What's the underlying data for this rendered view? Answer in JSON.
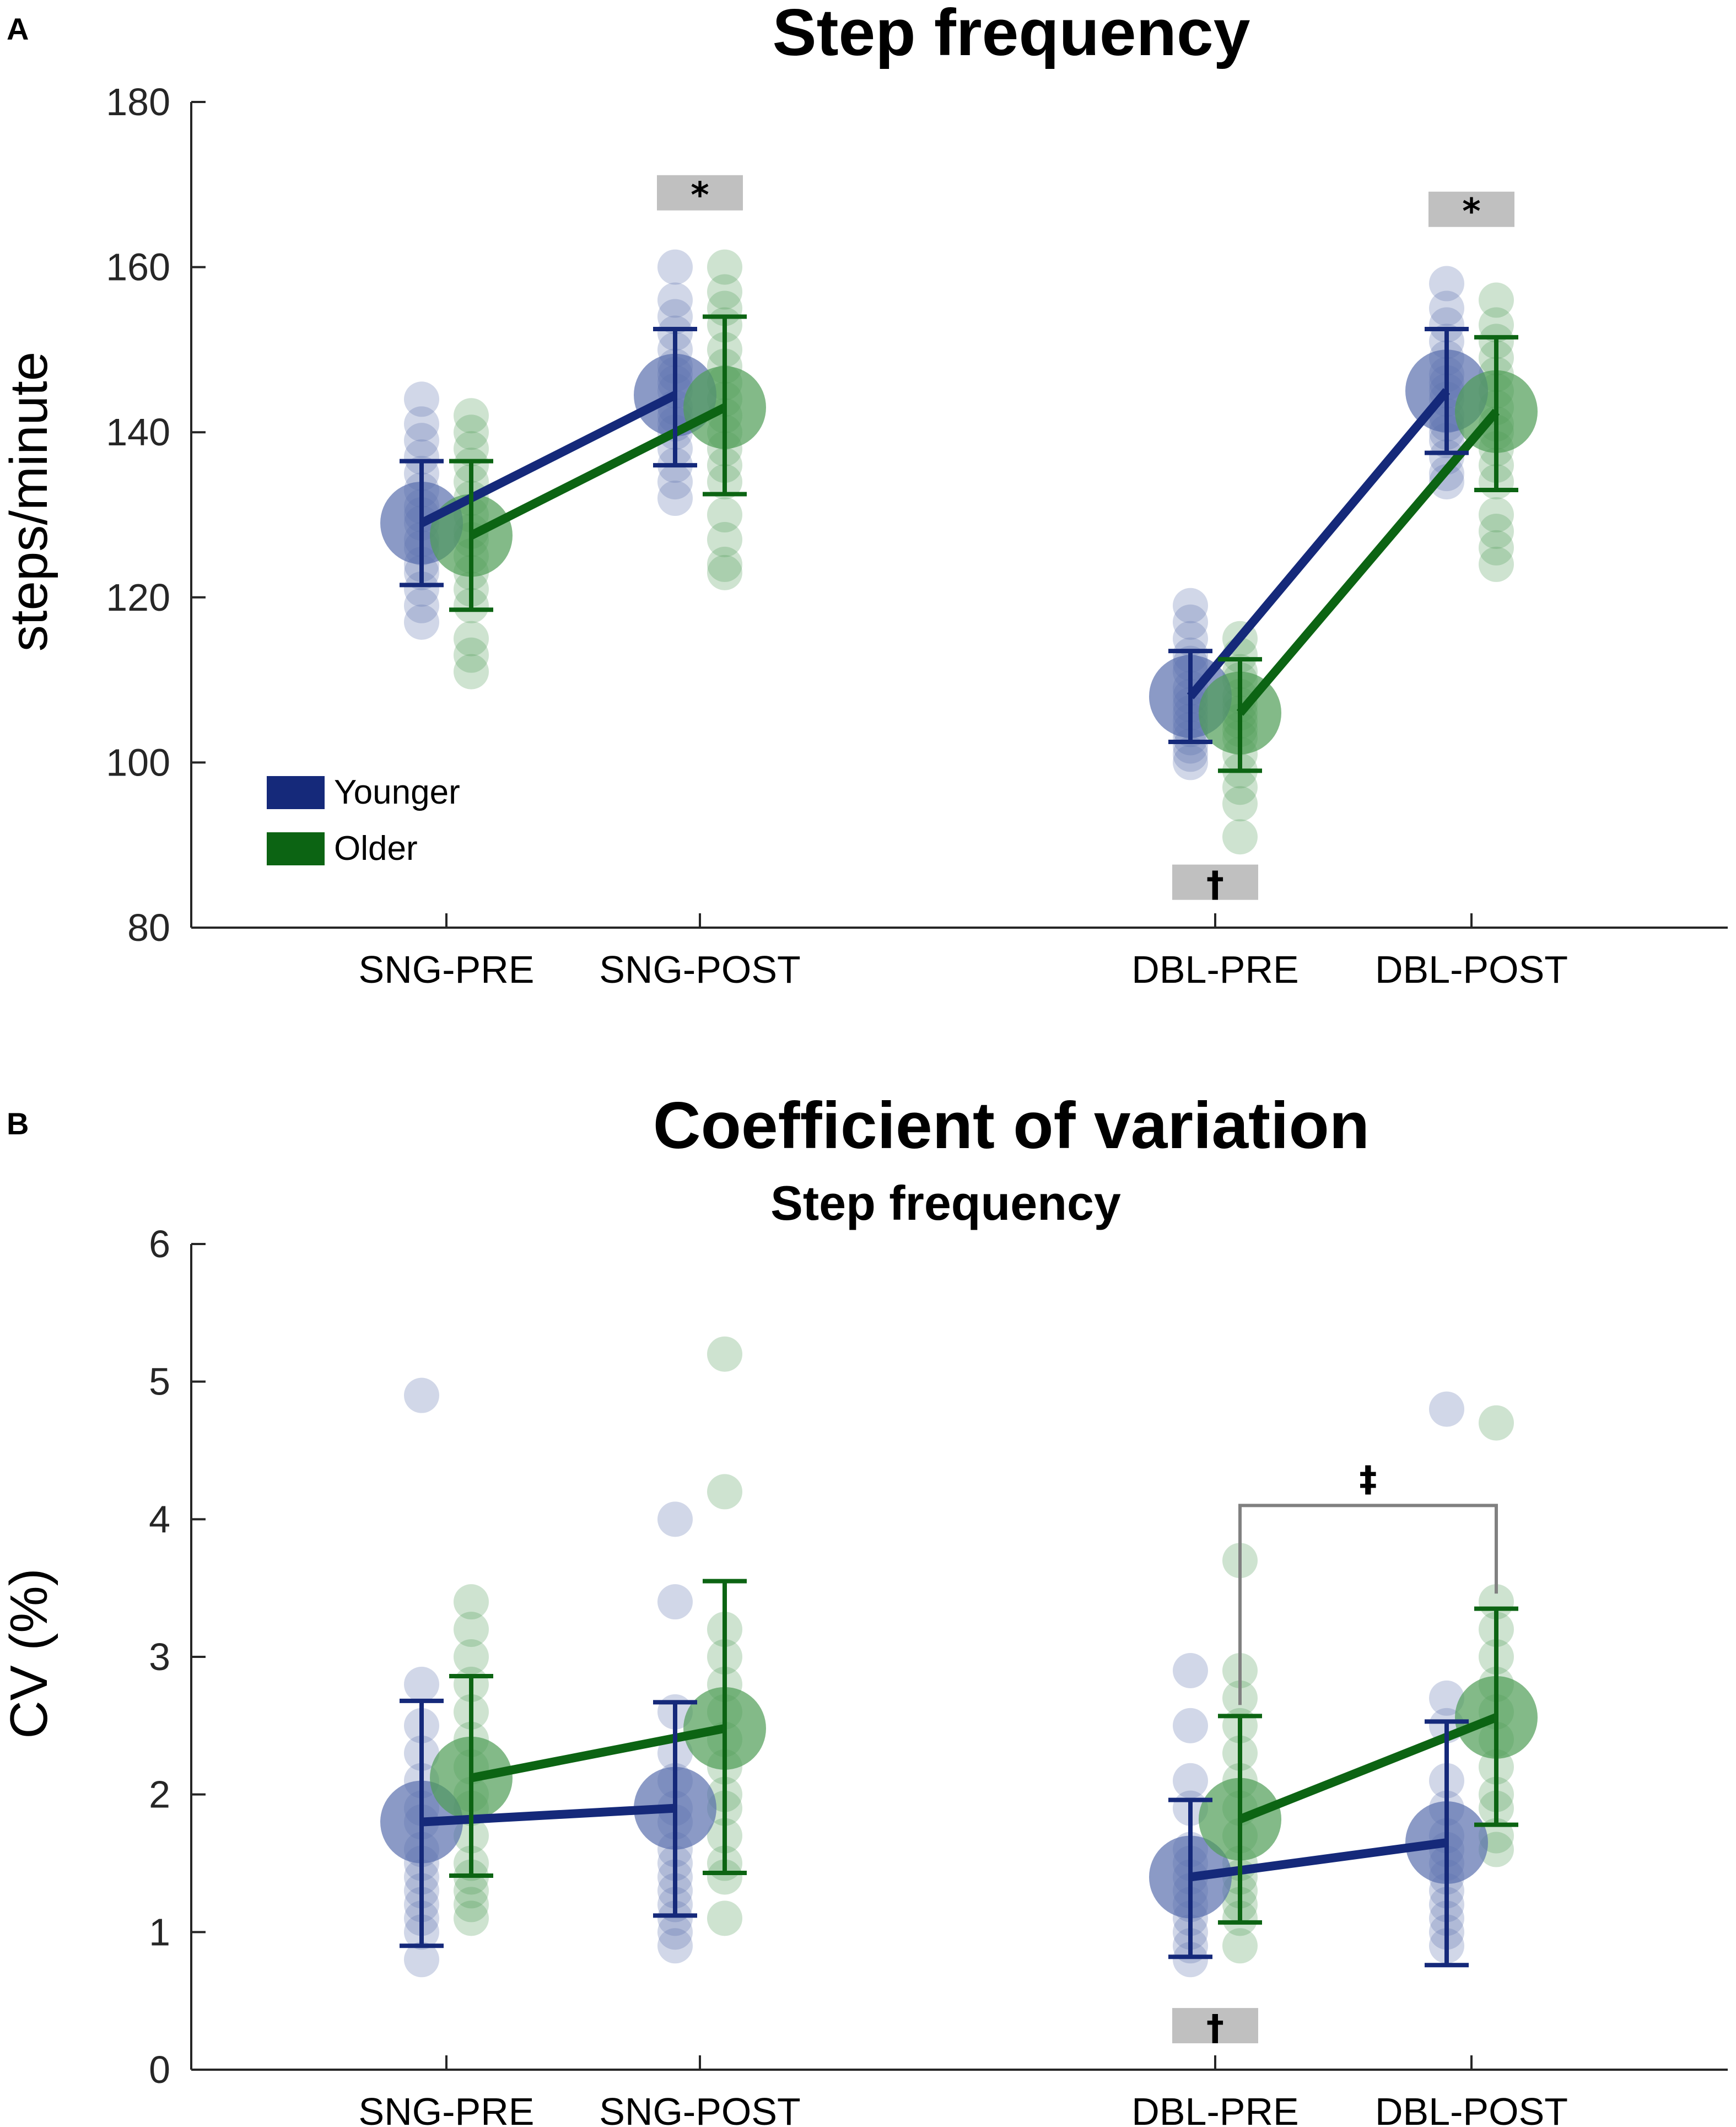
{
  "colors": {
    "younger": "#15297a",
    "older": "#0c6413",
    "younger_point": "#5a6fae",
    "older_point": "#4f9c55",
    "sig_box": "#c0c0c0",
    "bracket": "#808080"
  },
  "legend": {
    "younger": "Younger",
    "older": "Older"
  },
  "chart_data": [
    {
      "panel": "A",
      "type": "scatter",
      "title": "Step frequency",
      "subtitle": "",
      "ylabel": "steps/minute",
      "ylim": [
        80,
        180
      ],
      "yticks": [
        "80",
        "100",
        "120",
        "140",
        "160",
        "180"
      ],
      "categories": [
        "SNG-PRE",
        "SNG-POST",
        "DBL-PRE",
        "DBL-POST"
      ],
      "x_positions": [
        1,
        2,
        4,
        5
      ],
      "series": [
        {
          "name": "Younger",
          "means": [
            129,
            144.5,
            108,
            145
          ],
          "error_low": [
            121.5,
            136,
            102.5,
            137.5
          ],
          "error_high": [
            136.5,
            152.5,
            113.5,
            152.5
          ],
          "points": [
            [
              144,
              141,
              139,
              137,
              135,
              133,
              131,
              130,
              129,
              127,
              126,
              124,
              123,
              121,
              119,
              117
            ],
            [
              160,
              156,
              154,
              152,
              150,
              148,
              147,
              146,
              145,
              143,
              142,
              141,
              140,
              138,
              136,
              134,
              132
            ],
            [
              119,
              117,
              115,
              113,
              112,
              111,
              109,
              108,
              107,
              106,
              105,
              104,
              103,
              102,
              101,
              100
            ],
            [
              158,
              155,
              153,
              151,
              149,
              147,
              146,
              145,
              144,
              142,
              141,
              140,
              139,
              137,
              135,
              134
            ]
          ]
        },
        {
          "name": "Older",
          "means": [
            127.5,
            143,
            106,
            142.5
          ],
          "error_low": [
            118.5,
            132.5,
            99,
            133
          ],
          "error_high": [
            136.5,
            154,
            112.5,
            151.5
          ],
          "points": [
            [
              142,
              140,
              138,
              136,
              134,
              132,
              130,
              128,
              127,
              125,
              123,
              121,
              119,
              115,
              113,
              111
            ],
            [
              160,
              157,
              155,
              153,
              150,
              148,
              146,
              144,
              142,
              140,
              138,
              136,
              134,
              130,
              127,
              124,
              123
            ],
            [
              115,
              113,
              111,
              110,
              108,
              107,
              106,
              105,
              104,
              103,
              101,
              99,
              97,
              95,
              91
            ],
            [
              156,
              153,
              151,
              149,
              147,
              145,
              143,
              141,
              140,
              138,
              136,
              134,
              130,
              128,
              126,
              124
            ]
          ]
        }
      ],
      "annotations": [
        {
          "symbol": "*",
          "category": "SNG-POST",
          "y": 169
        },
        {
          "symbol": "*",
          "category": "DBL-POST",
          "y": 167
        },
        {
          "symbol": "†",
          "category": "DBL-PRE",
          "y": 85.5
        }
      ]
    },
    {
      "panel": "B",
      "type": "scatter",
      "title": "Coefficient of variation",
      "subtitle": "Step frequency",
      "ylabel": "CV (%)",
      "ylim": [
        0,
        6
      ],
      "yticks": [
        "0",
        "1",
        "2",
        "3",
        "4",
        "5",
        "6"
      ],
      "categories": [
        "SNG-PRE",
        "SNG-POST",
        "DBL-PRE",
        "DBL-POST"
      ],
      "x_positions": [
        1,
        2,
        4,
        5
      ],
      "series": [
        {
          "name": "Younger",
          "means": [
            1.8,
            1.9,
            1.4,
            1.65
          ],
          "error_low": [
            0.9,
            1.12,
            0.82,
            0.76
          ],
          "error_high": [
            2.68,
            2.67,
            1.96,
            2.53
          ],
          "points": [
            [
              4.9,
              2.8,
              2.5,
              2.3,
              2.1,
              1.9,
              1.8,
              1.6,
              1.5,
              1.4,
              1.3,
              1.2,
              1.1,
              1.0,
              0.8
            ],
            [
              4.0,
              3.4,
              2.6,
              2.3,
              2.1,
              1.9,
              1.8,
              1.6,
              1.5,
              1.4,
              1.3,
              1.2,
              1.1,
              1.0,
              0.9
            ],
            [
              2.9,
              2.5,
              2.1,
              1.9,
              1.6,
              1.5,
              1.4,
              1.3,
              1.2,
              1.1,
              1.0,
              0.9,
              0.8
            ],
            [
              4.8,
              2.7,
              2.5,
              2.1,
              1.9,
              1.7,
              1.6,
              1.5,
              1.4,
              1.3,
              1.2,
              1.1,
              1.0,
              0.9
            ]
          ]
        },
        {
          "name": "Older",
          "means": [
            2.12,
            2.48,
            1.82,
            2.56
          ],
          "error_low": [
            1.41,
            1.43,
            1.07,
            1.78
          ],
          "error_high": [
            2.86,
            3.55,
            2.57,
            3.35
          ],
          "points": [
            [
              3.4,
              3.2,
              3.0,
              2.8,
              2.6,
              2.4,
              2.2,
              2.0,
              1.9,
              1.7,
              1.5,
              1.4,
              1.3,
              1.2,
              1.1
            ],
            [
              5.2,
              4.2,
              3.2,
              3.0,
              2.8,
              2.6,
              2.4,
              2.2,
              2.0,
              1.9,
              1.7,
              1.5,
              1.4,
              1.1
            ],
            [
              3.7,
              2.9,
              2.7,
              2.5,
              2.3,
              2.1,
              1.9,
              1.7,
              1.5,
              1.4,
              1.3,
              1.2,
              1.1,
              0.9
            ],
            [
              4.7,
              3.4,
              3.2,
              3.0,
              2.8,
              2.6,
              2.4,
              2.2,
              2.0,
              1.9,
              1.7,
              1.6
            ]
          ]
        }
      ],
      "annotations": [
        {
          "symbol": "†",
          "category": "DBL-PRE",
          "y": 0.32
        }
      ],
      "bracket": {
        "symbol": "‡",
        "from": "DBL-PRE",
        "to": "DBL-POST",
        "y": 4.1
      }
    }
  ]
}
